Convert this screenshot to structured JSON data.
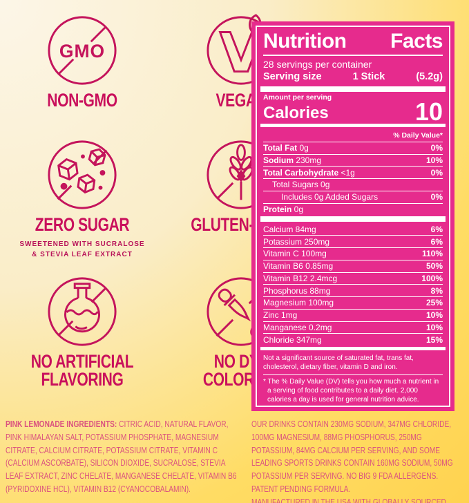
{
  "badges": [
    {
      "label": "NON-GMO",
      "icon_text": "GMO"
    },
    {
      "label": "VEGAN"
    },
    {
      "label": "ZERO SUGAR",
      "sub1": "SWEETENED WITH SUCRALOSE",
      "sub2": "&  STEVIA LEAF EXTRACT"
    },
    {
      "label": "GLUTEN-FREE"
    },
    {
      "label": "NO ARTIFICIAL FLAVORING"
    },
    {
      "label": "NO DYE COLORING"
    }
  ],
  "label": {
    "title_words": [
      "Nutrition",
      "Facts"
    ],
    "servings_per_container": "28 servings per container",
    "serving_size_label": "Serving size",
    "serving_size_value": "1 Stick",
    "serving_size_weight": "(5.2g)",
    "amount_per_serving": "Amount per serving",
    "calories_label": "Calories",
    "calories_value": "10",
    "daily_value_header": "% Daily Value*",
    "main_rows": [
      {
        "bold": "Total Fat",
        "rest": "0g",
        "dv": "0%",
        "indent": 0
      },
      {
        "bold": "Sodium",
        "rest": "230mg",
        "dv": "10%",
        "indent": 0
      },
      {
        "bold": "Total Carbohydrate",
        "rest": "<1g",
        "dv": "0%",
        "indent": 0
      },
      {
        "bold": "",
        "rest": "Total Sugars 0g",
        "dv": "",
        "indent": 1
      },
      {
        "bold": "",
        "rest": "Includes 0g Added Sugars",
        "dv": "0%",
        "indent": 2
      },
      {
        "bold": "Protein",
        "rest": "0g",
        "dv": "",
        "indent": 0
      }
    ],
    "vitamin_rows": [
      {
        "rest": "Calcium 84mg",
        "dv": "6%"
      },
      {
        "rest": "Potassium 250mg",
        "dv": "6%"
      },
      {
        "rest": "Vitamin C 100mg",
        "dv": "110%"
      },
      {
        "rest": "Vitamin B6 0.85mg",
        "dv": "50%"
      },
      {
        "rest": "Vitamin B12 2.4mcg",
        "dv": "100%"
      },
      {
        "rest": "Phosphorus 88mg",
        "dv": "8%"
      },
      {
        "rest": "Magnesium 100mg",
        "dv": "25%"
      },
      {
        "rest": "Zinc 1mg",
        "dv": "10%"
      },
      {
        "rest": "Manganese 0.2mg",
        "dv": "10%"
      },
      {
        "rest": "Chloride 347mg",
        "dv": "15%"
      }
    ],
    "footnote_source": "Not a significant source of saturated fat, trans fat, cholesterol, dietary fiber, vitamin D and iron.",
    "footnote_dv": "* The % Daily Value (DV) tells you how much a nutrient in a serving of food contributes to a daily diet. 2,000 calories a day is used for general nutrition advice."
  },
  "footer": {
    "left_lead": "PINK LEMONADE INGREDIENTS:",
    "left_body": "CITRIC ACID, NATURAL FLAVOR, PINK HIMALAYAN SALT, POTASSIUM PHOSPHATE, MAGNESIUM CITRATE, CALCIUM CITRATE, POTASSIUM CITRATE, VITAMIN C (CALCIUM ASCORBATE), SILICON DIOXIDE, SUCRALOSE, STEVIA LEAF EXTRACT, ZINC CHELATE, MANGANESE CHELATE, VITAMIN B6 (PYRIDOXINE HCL), VITAMIN B12 (CYANOCOBALAMIN).",
    "right_para1": "OUR DRINKS CONTAIN 230MG SODIUM, 347MG CHLORIDE,  100MG MAGNESIUM, 88MG PHOSPHORUS, 250MG POTASSIUM, 84MG CALCIUM PER SERVING,  AND SOME LEADING SPORTS DRINKS CONTAIN 160MG SODIUM, 50MG POTASSIUM PER SERVING. NO BIG 9 FDA ALLERGENS. PATENT PENDING FORMULA.",
    "right_para2": "MANUFACTURED IN THE USA WITH GLOBALLY SOURCED INGREDIENTS."
  },
  "colors": {
    "label_pink": "#E62B8D",
    "icon_crimson": "#C4145C",
    "caption_pink": "#C9105C",
    "ingredients_pink": "#DB537F",
    "background_yellow": "#FFD04A",
    "background_cream": "#FCF6E8"
  }
}
